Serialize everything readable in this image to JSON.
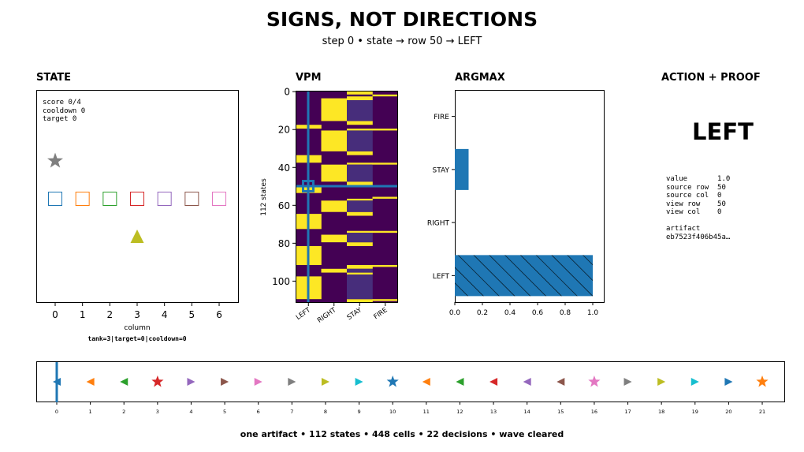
{
  "title": "SIGNS, NOT DIRECTIONS",
  "subtitle": "step 0  •  state → row 50 → LEFT",
  "panels": {
    "state": "STATE",
    "vpm": "VPM",
    "argmax": "ARGMAX",
    "action": "ACTION + PROOF"
  },
  "state_panel": {
    "text": "score 0/4\ncooldown 0\ntarget 0",
    "xlabel": "column",
    "footnote": "tank=3|target=0|cooldown=0",
    "ticks": [
      "0",
      "1",
      "2",
      "3",
      "4",
      "5",
      "6"
    ],
    "star_color": "#7f7f7f",
    "tank_color": "#bcbd22",
    "squares": [
      {
        "col": 0,
        "color": "#1f77b4"
      },
      {
        "col": 1,
        "color": "#ff7f0e"
      },
      {
        "col": 2,
        "color": "#2ca02c"
      },
      {
        "col": 3,
        "color": "#d62728"
      },
      {
        "col": 4,
        "color": "#9467bd"
      },
      {
        "col": 5,
        "color": "#8c564b"
      },
      {
        "col": 6,
        "color": "#e377c2"
      }
    ]
  },
  "action_panel": {
    "action": "LEFT",
    "proof": "value       1.0\nsource row  50\nsource col  0\nview row    50\nview col    0\n\nartifact\neb7523f406b45a…"
  },
  "footer": "one artifact • 112 states • 448 cells • 22 decisions • wave cleared",
  "chart_data": [
    {
      "type": "heatmap",
      "title": "VPM",
      "ylabel": "112 states",
      "columns": [
        "LEFT",
        "RIGHT",
        "STAY",
        "FIRE"
      ],
      "n_rows": 112,
      "y_ticks": [
        0,
        20,
        40,
        60,
        80,
        100
      ],
      "highlight": {
        "row": 50,
        "col": 0
      },
      "colors": {
        "one": "#fde725",
        "zero": "#440154",
        "mid": "#472d7b"
      },
      "bands": [
        {
          "col": 0,
          "rows": [
            [
              18,
              19
            ],
            [
              34,
              37
            ],
            [
              50,
              53
            ],
            [
              65,
              72
            ],
            [
              82,
              91
            ],
            [
              98,
              109
            ]
          ]
        },
        {
          "col": 1,
          "rows": [
            [
              4,
              15
            ],
            [
              21,
              31
            ],
            [
              39,
              47
            ],
            [
              58,
              63
            ],
            [
              76,
              79
            ],
            [
              94,
              95
            ]
          ]
        },
        {
          "col": 2,
          "rows": [
            [
              0,
              1
            ],
            [
              3,
              4
            ],
            [
              16,
              17
            ],
            [
              20,
              20
            ],
            [
              32,
              33
            ],
            [
              38,
              38
            ],
            [
              48,
              49
            ],
            [
              57,
              57
            ],
            [
              64,
              65
            ],
            [
              74,
              74
            ],
            [
              80,
              81
            ],
            [
              92,
              93
            ],
            [
              96,
              96
            ],
            [
              110,
              111
            ]
          ]
        },
        {
          "col": 2,
          "mid": true,
          "rows": [
            [
              5,
              15
            ],
            [
              21,
              31
            ],
            [
              39,
              47
            ],
            [
              58,
              63
            ],
            [
              75,
              79
            ],
            [
              94,
              95
            ],
            [
              97,
              109
            ]
          ]
        },
        {
          "col": 3,
          "rows": [
            [
              2,
              2
            ],
            [
              20,
              20
            ],
            [
              38,
              38
            ],
            [
              56,
              56
            ],
            [
              74,
              74
            ],
            [
              92,
              92
            ],
            [
              110,
              110
            ]
          ]
        }
      ]
    },
    {
      "type": "bar",
      "title": "ARGMAX",
      "orientation": "horizontal",
      "categories": [
        "LEFT",
        "RIGHT",
        "STAY",
        "FIRE"
      ],
      "values": [
        1.0,
        0.0,
        0.1,
        0.0
      ],
      "xlim": [
        0,
        1.08
      ],
      "x_ticks": [
        "0.0",
        "0.2",
        "0.4",
        "0.6",
        "0.8",
        "1.0"
      ],
      "selected": "LEFT",
      "color": "#1f77b4"
    },
    {
      "type": "scatter",
      "title": "decision timeline",
      "x": [
        0,
        1,
        2,
        3,
        4,
        5,
        6,
        7,
        8,
        9,
        10,
        11,
        12,
        13,
        14,
        15,
        16,
        17,
        18,
        19,
        20,
        21
      ],
      "markers": [
        "left",
        "left",
        "left",
        "star",
        "right",
        "right",
        "right",
        "right",
        "right",
        "right",
        "star",
        "left",
        "left",
        "left",
        "left",
        "left",
        "star",
        "right",
        "right",
        "right",
        "right",
        "star"
      ],
      "colors": [
        "#1f77b4",
        "#ff7f0e",
        "#2ca02c",
        "#d62728",
        "#9467bd",
        "#8c564b",
        "#e377c2",
        "#7f7f7f",
        "#bcbd22",
        "#17becf",
        "#1f77b4",
        "#ff7f0e",
        "#2ca02c",
        "#d62728",
        "#9467bd",
        "#8c564b",
        "#e377c2",
        "#7f7f7f",
        "#bcbd22",
        "#17becf",
        "#1f77b4",
        "#ff7f0e"
      ],
      "current": 0
    }
  ]
}
